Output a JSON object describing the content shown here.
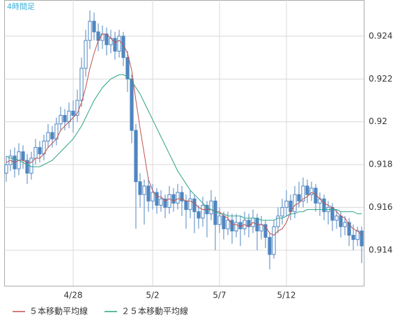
{
  "chart_data": {
    "type": "candlestick",
    "label": "4時間足",
    "categories": [
      null,
      null,
      null,
      null,
      null,
      null,
      null,
      null,
      null,
      null,
      null,
      null,
      null,
      null,
      null,
      null,
      "4/28",
      null,
      null,
      null,
      null,
      null,
      null,
      null,
      null,
      null,
      null,
      null,
      null,
      null,
      null,
      null,
      null,
      null,
      null,
      "5/2",
      null,
      null,
      null,
      null,
      null,
      null,
      null,
      null,
      null,
      null,
      null,
      null,
      null,
      null,
      null,
      "5/7",
      null,
      null,
      null,
      null,
      null,
      null,
      null,
      null,
      null,
      null,
      null,
      null,
      null,
      null,
      null,
      "5/12",
      null,
      null,
      null,
      null,
      null,
      null,
      null,
      null,
      null,
      null,
      null,
      null,
      null,
      null,
      null,
      null,
      null,
      null
    ],
    "open": [
      0.9176,
      0.918,
      0.9184,
      0.9178,
      0.9186,
      0.9182,
      0.9176,
      0.9183,
      0.9188,
      0.9185,
      0.9191,
      0.9195,
      0.9192,
      0.9199,
      0.9203,
      0.92,
      0.9205,
      0.9203,
      0.921,
      0.9225,
      0.9238,
      0.9247,
      0.9242,
      0.9238,
      0.9241,
      0.9236,
      0.9239,
      0.9233,
      0.924,
      0.923,
      0.922,
      0.9196,
      0.9172,
      0.9166,
      0.917,
      0.9163,
      0.9167,
      0.9161,
      0.9164,
      0.916,
      0.9166,
      0.9162,
      0.9167,
      0.9163,
      0.9159,
      0.9164,
      0.9158,
      0.9155,
      0.9161,
      0.9157,
      0.9163,
      0.9152,
      0.9156,
      0.915,
      0.9154,
      0.9149,
      0.9153,
      0.915,
      0.9154,
      0.9151,
      0.9155,
      0.9149,
      0.9152,
      0.9146,
      0.9138,
      0.9151,
      0.9156,
      0.916,
      0.9163,
      0.9158,
      0.9166,
      0.9163,
      0.917,
      0.9166,
      0.9169,
      0.9162,
      0.9164,
      0.9158,
      0.916,
      0.9154,
      0.9156,
      0.9151,
      0.9153,
      0.9147,
      0.9145,
      0.9149
    ],
    "high": [
      0.9184,
      0.9187,
      0.9188,
      0.919,
      0.9189,
      0.9185,
      0.9186,
      0.9192,
      0.9191,
      0.9194,
      0.9199,
      0.9198,
      0.9202,
      0.9207,
      0.9206,
      0.9209,
      0.921,
      0.9215,
      0.923,
      0.9243,
      0.9252,
      0.9251,
      0.9246,
      0.9245,
      0.9244,
      0.9243,
      0.9242,
      0.9243,
      0.9242,
      0.9233,
      0.9222,
      0.9199,
      0.9176,
      0.9173,
      0.9174,
      0.9171,
      0.9169,
      0.9168,
      0.9166,
      0.917,
      0.9169,
      0.9171,
      0.917,
      0.9166,
      0.9168,
      0.9166,
      0.9161,
      0.9165,
      0.9163,
      0.9168,
      0.9165,
      0.916,
      0.9158,
      0.9158,
      0.9157,
      0.9157,
      0.9156,
      0.9158,
      0.9157,
      0.9159,
      0.9157,
      0.9156,
      0.9154,
      0.9148,
      0.9154,
      0.916,
      0.9164,
      0.9168,
      0.9166,
      0.917,
      0.9172,
      0.9174,
      0.9173,
      0.9172,
      0.9171,
      0.9167,
      0.9166,
      0.9163,
      0.9162,
      0.9159,
      0.9158,
      0.9156,
      0.9155,
      0.9152,
      0.9151,
      0.9151
    ],
    "low": [
      0.9172,
      0.9177,
      0.9174,
      0.9175,
      0.9178,
      0.9171,
      0.9173,
      0.918,
      0.9181,
      0.9182,
      0.9188,
      0.9188,
      0.9189,
      0.9196,
      0.9196,
      0.9197,
      0.9195,
      0.92,
      0.9207,
      0.9221,
      0.9234,
      0.9238,
      0.9233,
      0.9234,
      0.9231,
      0.9232,
      0.9229,
      0.923,
      0.9226,
      0.9214,
      0.919,
      0.915,
      0.916,
      0.9152,
      0.9158,
      0.9159,
      0.9157,
      0.9158,
      0.9155,
      0.9157,
      0.9158,
      0.9159,
      0.9156,
      0.915,
      0.9155,
      0.9148,
      0.915,
      0.9151,
      0.9146,
      0.9154,
      0.914,
      0.9148,
      0.9145,
      0.9147,
      0.9143,
      0.9146,
      0.9142,
      0.9147,
      0.9146,
      0.9148,
      0.914,
      0.9145,
      0.9141,
      0.9131,
      0.9136,
      0.9148,
      0.9152,
      0.9156,
      0.9154,
      0.9155,
      0.916,
      0.916,
      0.9162,
      0.9163,
      0.9158,
      0.9156,
      0.9154,
      0.9152,
      0.9149,
      0.915,
      0.9146,
      0.9147,
      0.9142,
      0.914,
      0.9142,
      0.9134
    ],
    "close": [
      0.918,
      0.9184,
      0.9178,
      0.9186,
      0.9182,
      0.9176,
      0.9183,
      0.9188,
      0.9185,
      0.9191,
      0.9195,
      0.9192,
      0.9199,
      0.9203,
      0.92,
      0.9205,
      0.9203,
      0.921,
      0.9225,
      0.9238,
      0.9247,
      0.9242,
      0.9238,
      0.9241,
      0.9236,
      0.9239,
      0.9233,
      0.924,
      0.923,
      0.922,
      0.9196,
      0.9172,
      0.9166,
      0.917,
      0.9163,
      0.9167,
      0.9161,
      0.9164,
      0.916,
      0.9166,
      0.9162,
      0.9167,
      0.9163,
      0.9159,
      0.9164,
      0.9158,
      0.9155,
      0.9161,
      0.9157,
      0.9163,
      0.9152,
      0.9156,
      0.915,
      0.9154,
      0.9149,
      0.9153,
      0.915,
      0.9154,
      0.9151,
      0.9155,
      0.9149,
      0.9152,
      0.9146,
      0.9138,
      0.9151,
      0.9156,
      0.916,
      0.9163,
      0.9158,
      0.9166,
      0.9163,
      0.917,
      0.9166,
      0.9169,
      0.9162,
      0.9164,
      0.9158,
      0.916,
      0.9154,
      0.9156,
      0.9151,
      0.9153,
      0.9147,
      0.9145,
      0.9149,
      0.9142
    ],
    "candle_color": "#4f86c0",
    "series": [
      {
        "name": "５本移動平均線",
        "color": "#c0504d",
        "values": [
          0.9181,
          0.9182,
          0.9181,
          0.9182,
          0.9182,
          0.9181,
          0.9181,
          0.9183,
          0.9183,
          0.9185,
          0.9188,
          0.919,
          0.9192,
          0.9196,
          0.9198,
          0.92,
          0.9202,
          0.9204,
          0.9209,
          0.9216,
          0.9225,
          0.9232,
          0.9238,
          0.9241,
          0.9241,
          0.9239,
          0.9237,
          0.9238,
          0.9236,
          0.9232,
          0.9224,
          0.921,
          0.9197,
          0.9185,
          0.9173,
          0.9168,
          0.9165,
          0.9165,
          0.9163,
          0.9164,
          0.9163,
          0.9164,
          0.9164,
          0.9163,
          0.9163,
          0.9162,
          0.916,
          0.9159,
          0.9159,
          0.9159,
          0.9158,
          0.9158,
          0.9156,
          0.9155,
          0.9152,
          0.9152,
          0.9151,
          0.9152,
          0.9151,
          0.9153,
          0.9152,
          0.9152,
          0.9151,
          0.9148,
          0.9147,
          0.9149,
          0.915,
          0.9153,
          0.9158,
          0.9161,
          0.9162,
          0.9164,
          0.9165,
          0.9167,
          0.9166,
          0.9164,
          0.9162,
          0.9161,
          0.916,
          0.9158,
          0.9156,
          0.9155,
          0.9152,
          0.915,
          0.9149,
          0.9147
        ]
      },
      {
        "name": "２５本移動平均線",
        "color": "#2aa387",
        "values": [
          0.9184,
          0.9183,
          0.9183,
          0.9182,
          0.9181,
          0.918,
          0.9179,
          0.9179,
          0.9179,
          0.918,
          0.9181,
          0.9182,
          0.9184,
          0.9186,
          0.9188,
          0.919,
          0.9192,
          0.9195,
          0.9198,
          0.9202,
          0.9206,
          0.921,
          0.9213,
          0.9216,
          0.9218,
          0.922,
          0.9221,
          0.9222,
          0.9222,
          0.9221,
          0.9219,
          0.9216,
          0.9213,
          0.9209,
          0.9205,
          0.9201,
          0.9197,
          0.9193,
          0.9189,
          0.9185,
          0.9181,
          0.9177,
          0.9174,
          0.9171,
          0.9168,
          0.9166,
          0.9164,
          0.9162,
          0.916,
          0.9159,
          0.9158,
          0.9157,
          0.9157,
          0.9156,
          0.9156,
          0.9156,
          0.9156,
          0.9155,
          0.9155,
          0.9155,
          0.9155,
          0.9154,
          0.9154,
          0.9154,
          0.9154,
          0.9155,
          0.9155,
          0.9156,
          0.9157,
          0.9157,
          0.9158,
          0.9158,
          0.9159,
          0.9159,
          0.9159,
          0.9159,
          0.9159,
          0.9159,
          0.9159,
          0.9159,
          0.9158,
          0.9158,
          0.9158,
          0.9158,
          0.9157,
          0.9157
        ]
      }
    ],
    "ylim": [
      0.91234,
      0.92569
    ],
    "yticks": [
      0.914,
      0.916,
      0.918,
      0.92,
      0.922,
      0.924
    ],
    "grid": true
  }
}
